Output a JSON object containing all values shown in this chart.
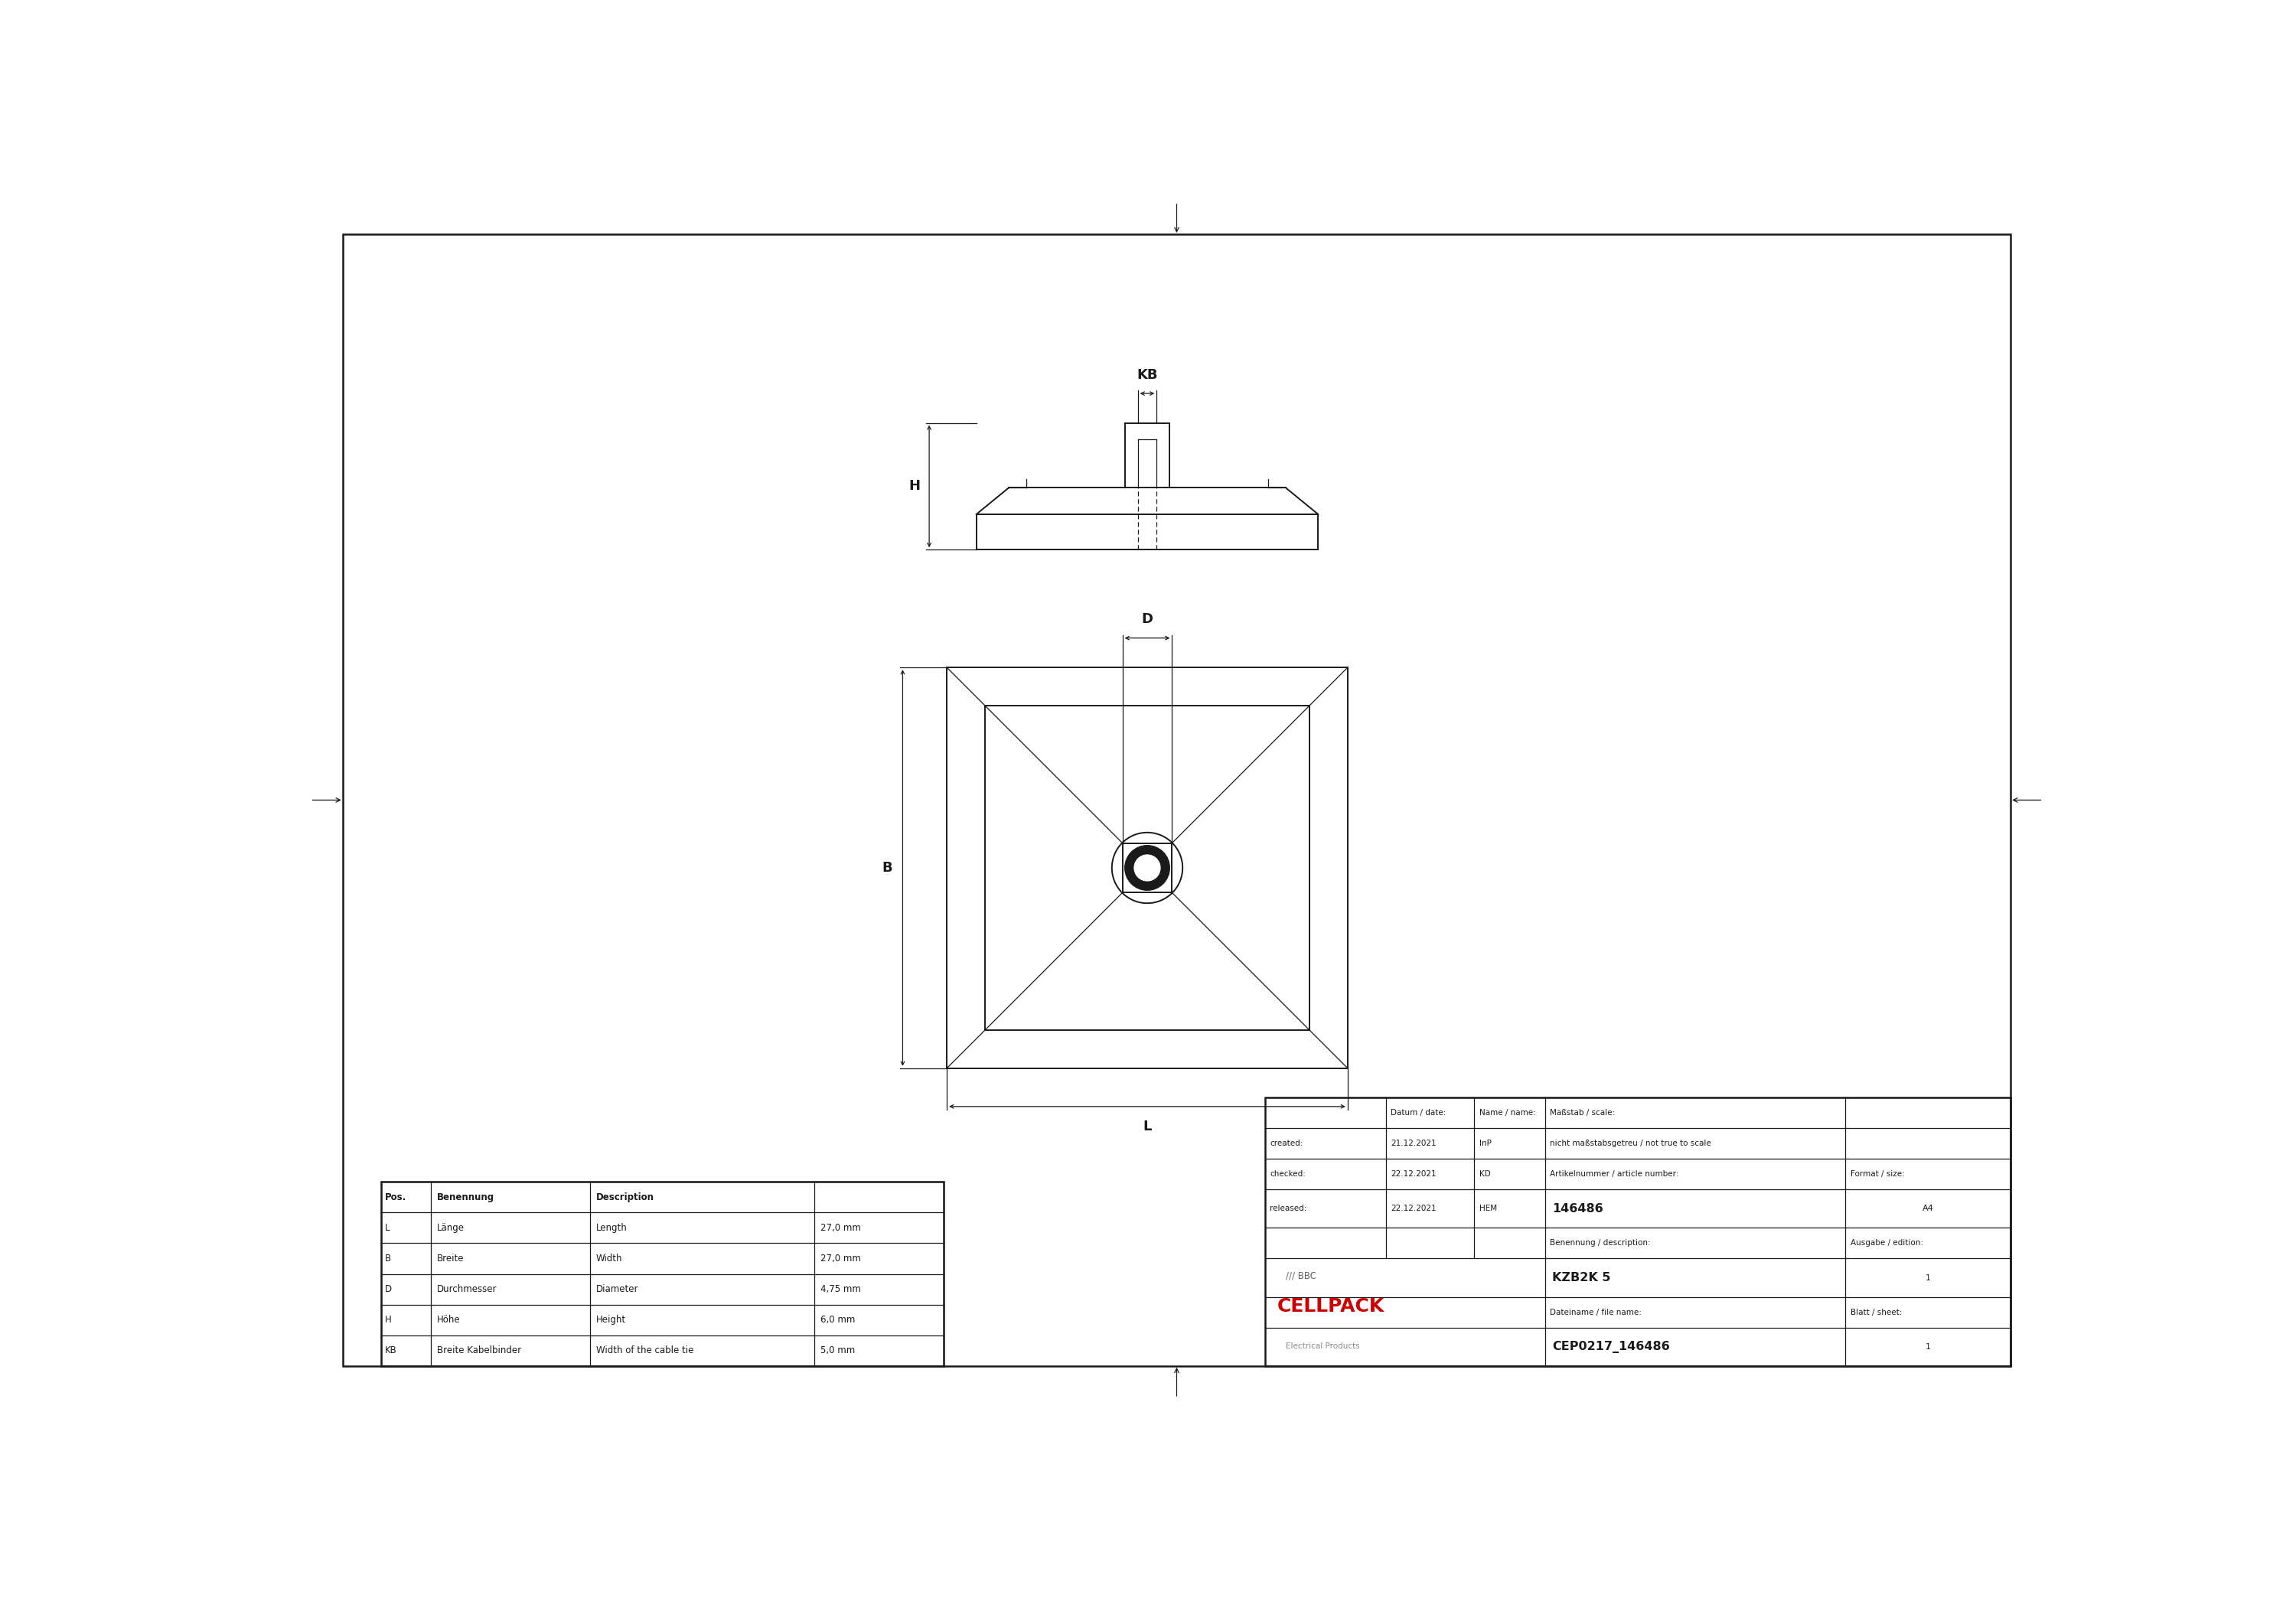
{
  "bg_color": "#ffffff",
  "line_color": "#1a1a1a",
  "table_data": {
    "rows": [
      [
        "L",
        "Länge",
        "Length",
        "27,0 mm"
      ],
      [
        "B",
        "Breite",
        "Width",
        "27,0 mm"
      ],
      [
        "D",
        "Durchmesser",
        "Diameter",
        "4,75 mm"
      ],
      [
        "H",
        "Höhe",
        "Height",
        "6,0 mm"
      ],
      [
        "KB",
        "Breite Kabelbinder",
        "Width of the cable tie",
        "5,0 mm"
      ]
    ]
  },
  "info_table": {
    "created_date": "21.12.2021",
    "created_by": "InP",
    "checked_date": "22.12.2021",
    "checked_by": "KD",
    "released_date": "22.12.2021",
    "released_by": "HEM",
    "scale_label": "Maßstab / scale:",
    "scale_value": "nicht maßstabsgetreu / not true to scale",
    "article_label": "Artikelnummer / article number:",
    "article_number": "146486",
    "format_label": "Format / size:",
    "format_value": "A4",
    "description_label": "Benennung / description:",
    "edition_label": "Ausgabe / edition:",
    "description_value": "KZB2K 5",
    "edition_value": "1",
    "filename_label": "Dateiname / file name:",
    "sheet_label": "Blatt / sheet:",
    "filename_value": "CEP0217_146486",
    "sheet_value": "1",
    "datum_label": "Datum / date:",
    "name_label": "Name / name:"
  },
  "cellpack_bbc": "/// BBC",
  "cellpack_text": "CELLPACK",
  "cellpack_sub": "Electrical Products"
}
